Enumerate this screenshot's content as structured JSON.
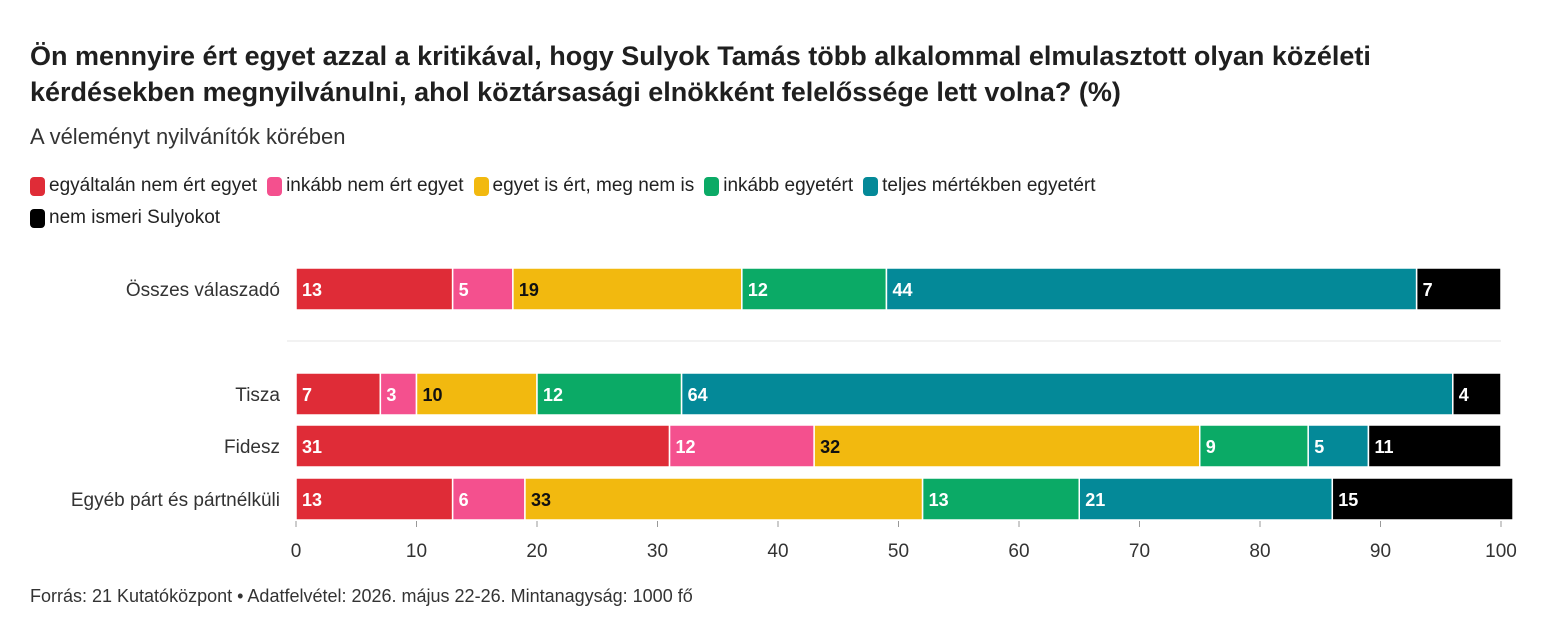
{
  "chart_data": {
    "type": "bar",
    "orientation": "horizontal",
    "stacked": true,
    "title": "Ön mennyire ért egyet azzal a kritikával, hogy Sulyok Tamás több alkalommal elmulasztott olyan közéleti kérdésekben megnyilvánulni, ahol köztársasági elnökként felelőssége lett volna? (%)",
    "subtitle": "A véleményt nyilvánítók körében",
    "categories": [
      "Összes válaszadó",
      "Tisza",
      "Fidesz",
      "Egyéb párt és pártnélküli"
    ],
    "group_separator_after": 0,
    "xlim": [
      0,
      100
    ],
    "xticks": [
      0,
      10,
      20,
      30,
      40,
      50,
      60,
      70,
      80,
      90,
      100
    ],
    "grid": false,
    "legend_position": "top-left",
    "series": [
      {
        "name": "egyáltalán nem ért egyet",
        "color": "#df2c37",
        "label_color": "#ffffff",
        "values": [
          13,
          7,
          31,
          13
        ]
      },
      {
        "name": "inkább nem ért egyet",
        "color": "#f4508e",
        "label_color": "#ffffff",
        "values": [
          5,
          3,
          12,
          6
        ]
      },
      {
        "name": "egyet is ért, meg nem is",
        "color": "#f2b90f",
        "label_color": "#111111",
        "values": [
          19,
          10,
          32,
          33
        ]
      },
      {
        "name": "inkább egyetért",
        "color": "#0baa66",
        "label_color": "#ffffff",
        "values": [
          12,
          12,
          9,
          13
        ]
      },
      {
        "name": "teljes mértékben egyetért",
        "color": "#048998",
        "label_color": "#ffffff",
        "values": [
          44,
          64,
          5,
          21
        ]
      },
      {
        "name": "nem ismeri Sulyokot",
        "color": "#000000",
        "label_color": "#ffffff",
        "values": [
          7,
          4,
          11,
          15
        ]
      }
    ]
  },
  "footer": {
    "text": "Forrás: 21 Kutatóközpont • Adatfelvétel: 2026. május 22-26. Mintanagyság: 1000 fő"
  }
}
